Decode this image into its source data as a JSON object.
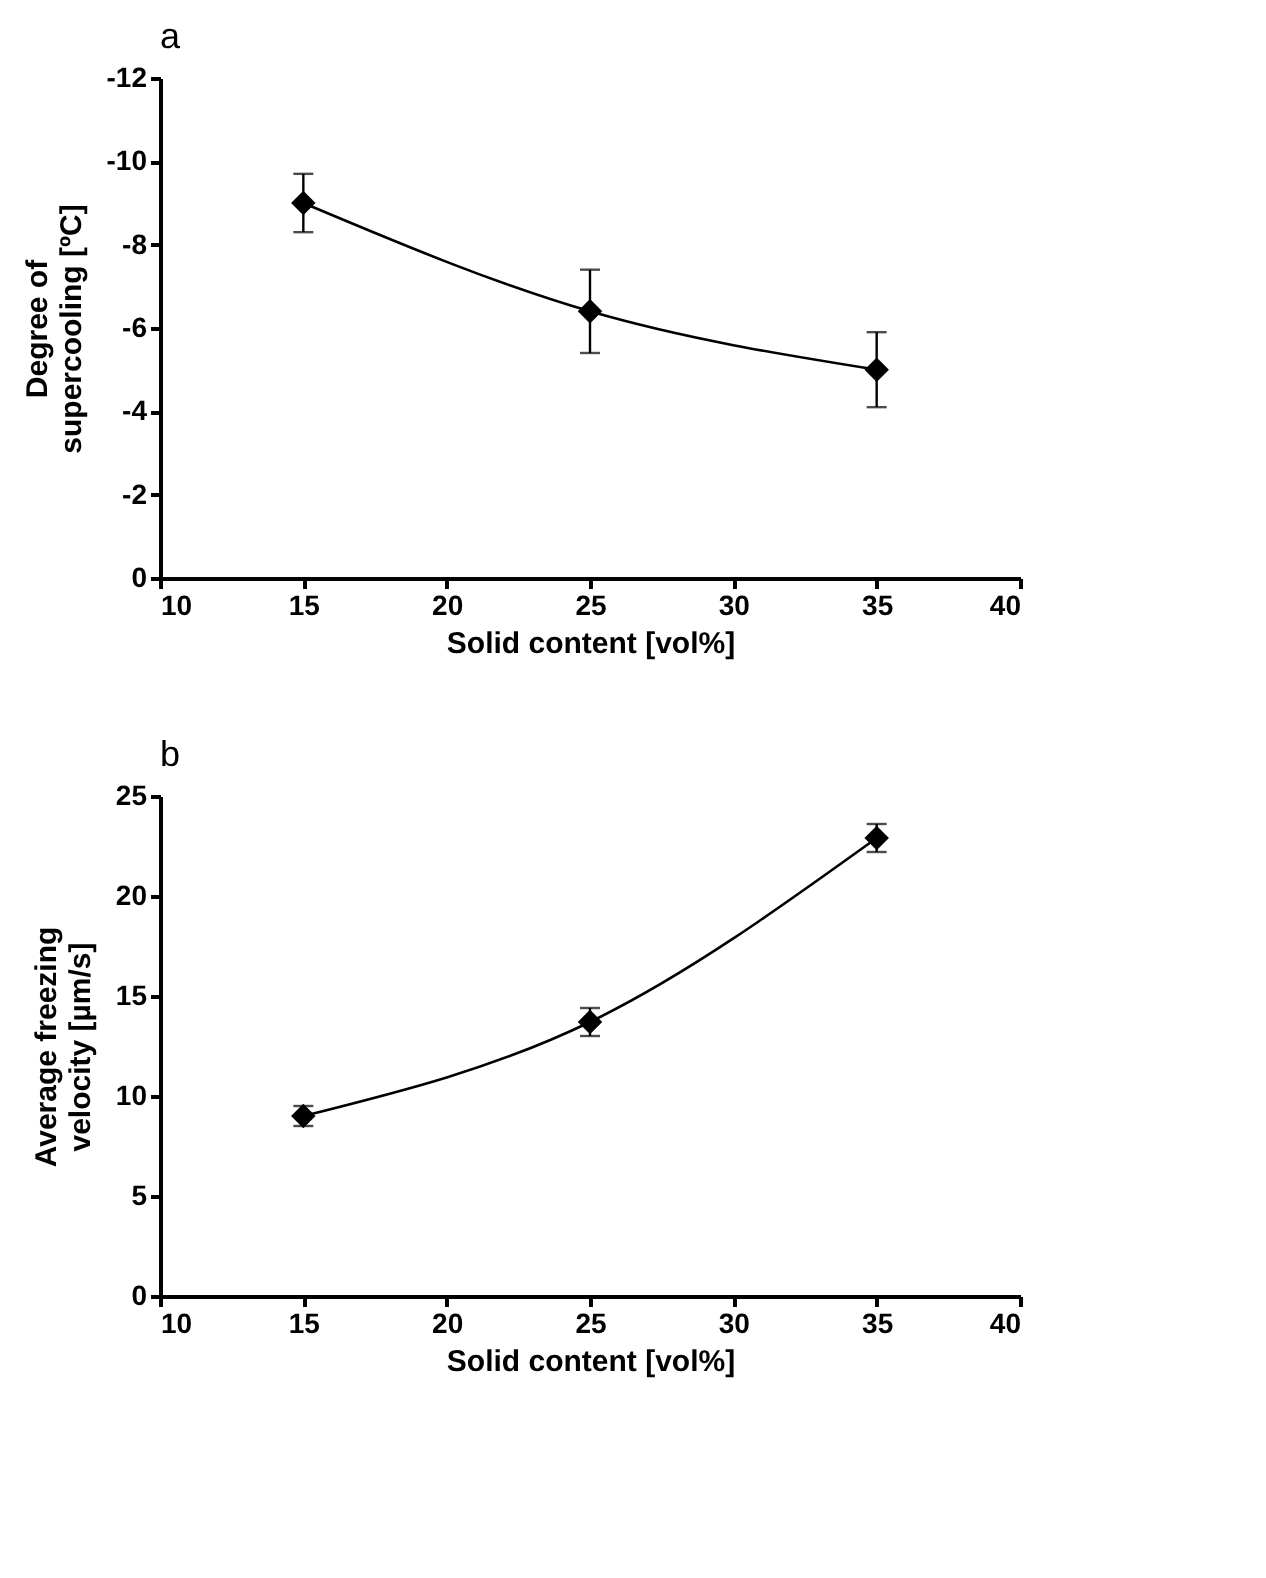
{
  "chart_data": [
    {
      "type": "line",
      "title": "a",
      "xlabel": "Solid content [vol%]",
      "ylabel": "Degree of supercooling [ºC]",
      "x": [
        15,
        25,
        35
      ],
      "values": [
        -9,
        -6.4,
        -5
      ],
      "errors": [
        0.7,
        1.0,
        0.9
      ],
      "color": "#000000",
      "xlim": [
        10,
        40
      ],
      "xticks": [
        10,
        15,
        20,
        25,
        30,
        35,
        40
      ],
      "ylim": [
        0,
        -12
      ],
      "yticks": [
        0,
        -2,
        -4,
        -6,
        -8,
        -10,
        -12
      ],
      "marker": "diamond",
      "line_style": "solid",
      "grid": false
    },
    {
      "type": "line",
      "title": "b",
      "xlabel": "Solid content [vol%]",
      "ylabel": "Average freezing velocity [µm/s]",
      "x": [
        15,
        25,
        35
      ],
      "values": [
        9,
        13.7,
        22.9
      ],
      "errors": [
        0.5,
        0.7,
        0.7
      ],
      "color": "#000000",
      "xlim": [
        10,
        40
      ],
      "xticks": [
        10,
        15,
        20,
        25,
        30,
        35,
        40
      ],
      "ylim": [
        0,
        25
      ],
      "yticks": [
        0,
        5,
        10,
        15,
        20,
        25
      ],
      "marker": "diamond",
      "line_style": "solid",
      "grid": false
    }
  ]
}
